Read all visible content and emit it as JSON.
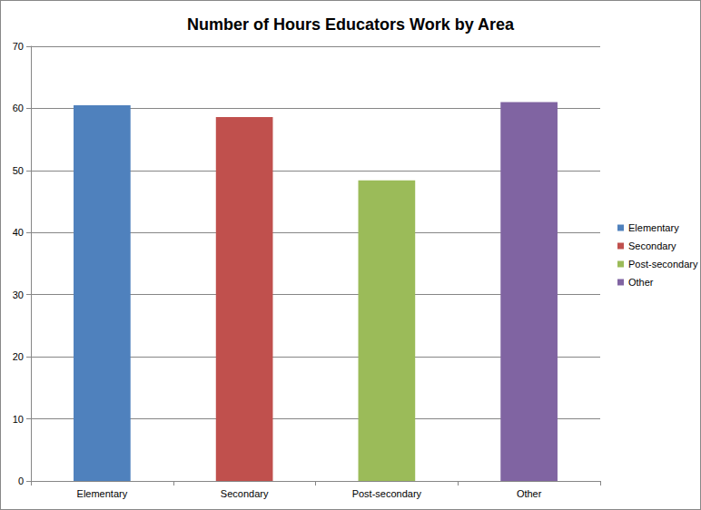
{
  "chart_data": {
    "type": "bar",
    "title": "Number of Hours Educators Work by Area",
    "categories": [
      "Elementary",
      "Secondary",
      "Post-secondary",
      "Other"
    ],
    "values": [
      60.5,
      58.6,
      48.4,
      61
    ],
    "colors": [
      "#4f81bd",
      "#c0504d",
      "#9bbb59",
      "#8064a2"
    ],
    "ylim": [
      0,
      70
    ],
    "yticks": [
      0,
      10,
      20,
      30,
      40,
      50,
      60,
      70
    ],
    "grid": true,
    "legend": "right"
  }
}
